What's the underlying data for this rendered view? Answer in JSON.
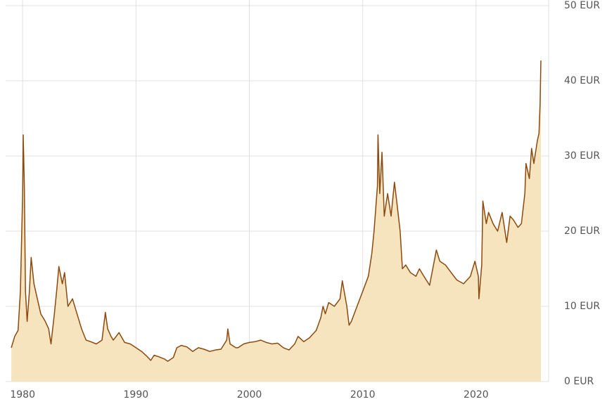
{
  "chart_data": {
    "type": "area",
    "color": "#8b4a0f",
    "fill": "#f5e4be",
    "grid": true,
    "xlim": [
      1978.5,
      2026.4
    ],
    "ylim": [
      0,
      50
    ],
    "xticks": [
      1980,
      1990,
      2000,
      2010,
      2020
    ],
    "yticks": [
      {
        "value": 0,
        "label": "0 EUR"
      },
      {
        "value": 10,
        "label": "10 EUR"
      },
      {
        "value": 20,
        "label": "20 EUR"
      },
      {
        "value": 30,
        "label": "30 EUR"
      },
      {
        "value": 40,
        "label": "40 EUR"
      },
      {
        "value": 50,
        "label": "50 EUR"
      }
    ],
    "x": [
      1979.0,
      1979.3,
      1979.6,
      1979.8,
      1980.0,
      1980.05,
      1980.15,
      1980.25,
      1980.4,
      1980.6,
      1980.75,
      1981.0,
      1981.3,
      1981.6,
      1982.0,
      1982.3,
      1982.5,
      1982.8,
      1983.0,
      1983.2,
      1983.5,
      1983.7,
      1984.0,
      1984.4,
      1984.8,
      1985.2,
      1985.6,
      1986.0,
      1986.5,
      1987.0,
      1987.3,
      1987.5,
      1987.8,
      1988.0,
      1988.5,
      1989.0,
      1989.5,
      1990.0,
      1990.5,
      1991.0,
      1991.3,
      1991.6,
      1992.0,
      1992.5,
      1992.8,
      1993.3,
      1993.6,
      1994.0,
      1994.5,
      1995.0,
      1995.5,
      1996.0,
      1996.5,
      1997.0,
      1997.5,
      1998.0,
      1998.1,
      1998.3,
      1998.8,
      1999.0,
      1999.5,
      2000.0,
      2000.5,
      2001.0,
      2001.5,
      2002.0,
      2002.5,
      2003.0,
      2003.5,
      2004.0,
      2004.3,
      2004.8,
      2005.3,
      2005.9,
      2006.3,
      2006.5,
      2006.7,
      2007.0,
      2007.5,
      2008.0,
      2008.2,
      2008.6,
      2008.8,
      2009.0,
      2009.5,
      2010.0,
      2010.5,
      2010.8,
      2011.0,
      2011.3,
      2011.35,
      2011.5,
      2011.7,
      2011.9,
      2012.2,
      2012.5,
      2012.8,
      2013.0,
      2013.3,
      2013.5,
      2013.8,
      2014.2,
      2014.7,
      2015.0,
      2015.4,
      2015.9,
      2016.5,
      2016.8,
      2017.3,
      2017.8,
      2018.3,
      2018.9,
      2019.5,
      2019.9,
      2020.2,
      2020.25,
      2020.5,
      2020.6,
      2020.9,
      2021.1,
      2021.5,
      2021.9,
      2022.3,
      2022.7,
      2023.0,
      2023.3,
      2023.7,
      2024.0,
      2024.3,
      2024.4,
      2024.7,
      2024.9,
      2025.1,
      2025.4,
      2025.55,
      2025.65,
      2025.72
    ],
    "values": [
      4.5,
      6,
      6.8,
      12,
      25,
      32.8,
      26,
      12,
      8,
      12,
      16.5,
      13,
      11,
      9,
      8,
      7,
      5,
      9,
      12,
      15.3,
      13,
      14.5,
      10,
      11,
      9,
      7,
      5.5,
      5.3,
      5,
      5.5,
      9.2,
      7,
      6,
      5.5,
      6.5,
      5.2,
      5,
      4.5,
      4,
      3.3,
      2.8,
      3.5,
      3.3,
      3,
      2.7,
      3.2,
      4.5,
      4.8,
      4.6,
      4,
      4.5,
      4.3,
      4,
      4.2,
      4.3,
      5.5,
      7,
      5,
      4.5,
      4.5,
      5,
      5.2,
      5.3,
      5.5,
      5.2,
      5,
      5.1,
      4.5,
      4.2,
      5,
      6,
      5.3,
      5.8,
      6.8,
      8.5,
      10,
      9,
      10.5,
      10,
      11,
      13.4,
      10,
      7.5,
      8,
      10,
      12,
      14,
      17,
      20,
      26,
      32.8,
      25,
      30.5,
      22,
      25,
      22,
      26.5,
      24,
      20,
      15,
      15.5,
      14.5,
      14,
      15,
      14,
      12.8,
      17.5,
      16,
      15.5,
      14.5,
      13.5,
      13,
      14,
      16,
      14,
      11,
      15.5,
      24,
      21,
      22.5,
      21,
      20,
      22.5,
      18.5,
      22,
      21.5,
      20.5,
      21,
      25,
      29,
      27,
      31,
      29,
      32,
      33,
      37,
      42.7
    ]
  }
}
